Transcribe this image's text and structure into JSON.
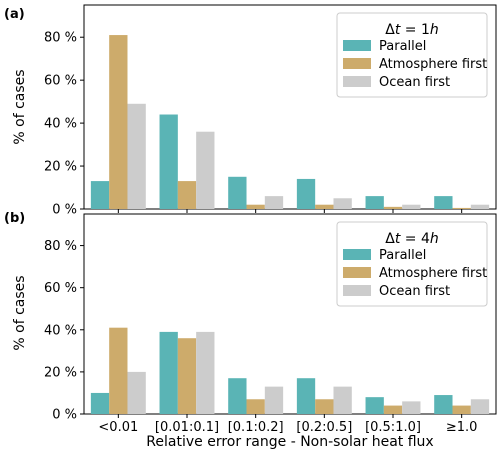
{
  "chart_data": [
    {
      "type": "bar",
      "panel_label": "(a)",
      "legend_title_html": "Δt = 1h",
      "legend_title_parts": {
        "delta": "Δ",
        "t": "t",
        "eq": " = 1",
        "h": "h"
      },
      "categories": [
        "<0.01",
        "[0.01:0.1]",
        "[0.1:0.2]",
        "[0.2:0.5]",
        "[0.5:1.0]",
        "≥1.0"
      ],
      "series": [
        {
          "name": "Parallel",
          "color": "#5ab4b5",
          "values": [
            13,
            44,
            15,
            14,
            6,
            6
          ]
        },
        {
          "name": "Atmosphere first",
          "color": "#cdab6b",
          "values": [
            81,
            13,
            2,
            2,
            1,
            0.5
          ]
        },
        {
          "name": "Ocean first",
          "color": "#cccccc",
          "values": [
            49,
            36,
            6,
            5,
            2,
            2
          ]
        }
      ],
      "ylabel": "% of cases",
      "yticks": [
        "0 %",
        "20 %",
        "40 %",
        "60 %",
        "80 %"
      ],
      "ylim": [
        0,
        95
      ],
      "legend_position": "top-right"
    },
    {
      "type": "bar",
      "panel_label": "(b)",
      "legend_title_parts": {
        "delta": "Δ",
        "t": "t",
        "eq": " = 4",
        "h": "h"
      },
      "categories": [
        "<0.01",
        "[0.01:0.1]",
        "[0.1:0.2]",
        "[0.2:0.5]",
        "[0.5:1.0]",
        "≥1.0"
      ],
      "series": [
        {
          "name": "Parallel",
          "color": "#5ab4b5",
          "values": [
            10,
            39,
            17,
            17,
            8,
            9
          ]
        },
        {
          "name": "Atmosphere first",
          "color": "#cdab6b",
          "values": [
            41,
            36,
            7,
            7,
            4,
            4
          ]
        },
        {
          "name": "Ocean first",
          "color": "#cccccc",
          "values": [
            20,
            39,
            13,
            13,
            6,
            7
          ]
        }
      ],
      "ylabel": "% of cases",
      "yticks": [
        "0 %",
        "20 %",
        "40 %",
        "60 %",
        "80 %"
      ],
      "ylim": [
        0,
        95
      ],
      "legend_position": "top-right"
    }
  ],
  "xlabel": "Relative error range - Non-solar heat flux"
}
